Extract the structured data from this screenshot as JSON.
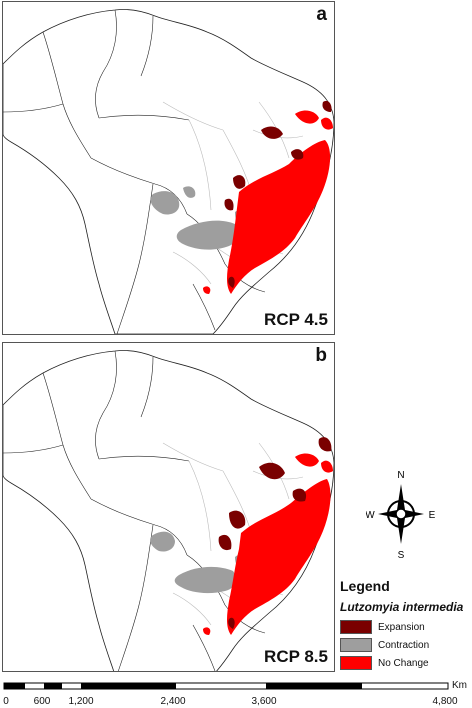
{
  "panels": [
    {
      "letter": "a",
      "scenario": "RCP 4.5"
    },
    {
      "letter": "b",
      "scenario": "RCP 8.5"
    }
  ],
  "compass": {
    "n": "N",
    "s": "S",
    "e": "E",
    "w": "W"
  },
  "legend": {
    "title": "Legend",
    "species": "Lutzomyia intermedia",
    "items": [
      {
        "label": "Expansion",
        "color": "#7a0000"
      },
      {
        "label": "Contraction",
        "color": "#9e9e9e"
      },
      {
        "label": "No Change",
        "color": "#ff0000"
      }
    ]
  },
  "scale": {
    "unit": "Km",
    "ticks": [
      "0",
      "600",
      "1,200",
      "2,400",
      "3,600",
      "4,800"
    ]
  },
  "colors": {
    "expansion": "#7a0000",
    "contraction": "#9e9e9e",
    "no_change": "#ff0000",
    "outline": "#222222",
    "state_border": "#bbbbbb"
  }
}
